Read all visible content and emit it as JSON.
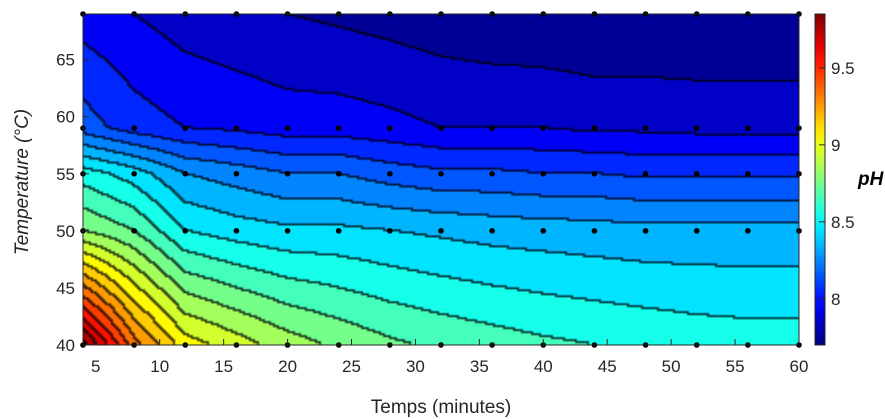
{
  "chart_data": {
    "type": "heatmap",
    "subtype": "filled-contour",
    "title": "",
    "xlabel": "Temps (minutes)",
    "ylabel": "Temperature (°C)",
    "colorbar_label": "pH",
    "xlim": [
      4,
      60
    ],
    "ylim": [
      40,
      69
    ],
    "clim": [
      7.7,
      9.85
    ],
    "colormap": "jet",
    "x_ticks": [
      5,
      10,
      15,
      20,
      25,
      30,
      35,
      40,
      45,
      50,
      55,
      60
    ],
    "y_ticks": [
      40,
      45,
      50,
      55,
      60,
      65
    ],
    "colorbar_ticks": [
      8,
      8.5,
      9,
      9.5
    ],
    "x_tick_labels": [
      "5",
      "10",
      "15",
      "20",
      "25",
      "30",
      "35",
      "40",
      "45",
      "50",
      "55",
      "60"
    ],
    "y_tick_labels": [
      "40",
      "45",
      "50",
      "55",
      "60",
      "65"
    ],
    "colorbar_tick_labels": [
      "8",
      "8.5",
      "9",
      "9.5"
    ],
    "sample_x": [
      4,
      8,
      12,
      16,
      20,
      24,
      28,
      32,
      36,
      40,
      44,
      48,
      52,
      56,
      60
    ],
    "sample_y": [
      40,
      50,
      55,
      59,
      69
    ],
    "ph_values": [
      [
        9.85,
        9.35,
        9.05,
        8.95,
        8.85,
        8.78,
        8.72,
        8.68,
        8.65,
        8.62,
        8.6,
        8.58,
        8.56,
        8.55,
        8.55
      ],
      [
        8.8,
        8.7,
        8.5,
        8.45,
        8.42,
        8.42,
        8.4,
        8.38,
        8.36,
        8.35,
        8.34,
        8.33,
        8.33,
        8.33,
        8.33
      ],
      [
        8.55,
        8.45,
        8.3,
        8.25,
        8.2,
        8.2,
        8.15,
        8.12,
        8.12,
        8.1,
        8.1,
        8.08,
        8.08,
        8.08,
        8.08
      ],
      [
        8.15,
        8.05,
        8.0,
        7.98,
        7.95,
        7.95,
        7.93,
        7.9,
        7.9,
        7.9,
        7.88,
        7.88,
        7.87,
        7.87,
        7.87
      ],
      [
        7.95,
        7.9,
        7.85,
        7.82,
        7.8,
        7.78,
        7.76,
        7.74,
        7.72,
        7.71,
        7.7,
        7.7,
        7.7,
        7.7,
        7.7
      ]
    ],
    "sample_points": "grid of sample_x by sample_y marked with black dots",
    "grid": false
  }
}
